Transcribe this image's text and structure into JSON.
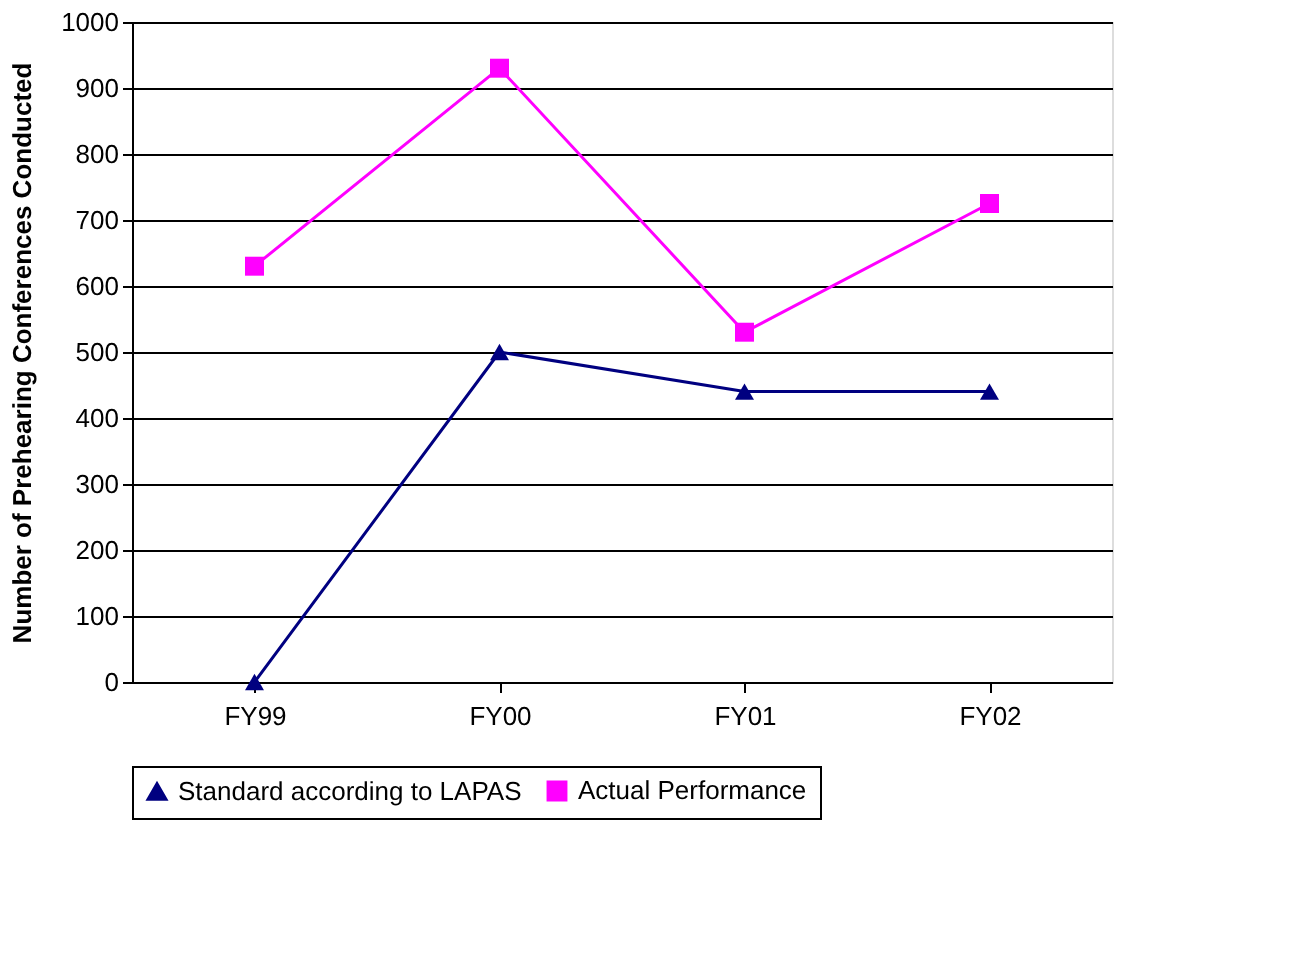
{
  "chart_data": {
    "type": "line",
    "ylabel": "Number of Prehearing Conferences Conducted",
    "categories": [
      "FY99",
      "FY00",
      "FY01",
      "FY02"
    ],
    "series": [
      {
        "name": "Standard according to LAPAS",
        "color": "#000080",
        "marker": "triangle",
        "values": [
          0,
          500,
          440,
          440
        ]
      },
      {
        "name": "Actual Performance",
        "color": "#ff00ff",
        "marker": "square",
        "values": [
          630,
          930,
          530,
          725
        ]
      }
    ],
    "ylim": [
      0,
      1000
    ],
    "yticks": [
      0,
      100,
      200,
      300,
      400,
      500,
      600,
      700,
      800,
      900,
      1000
    ],
    "grid": "y",
    "legend": "bottom",
    "line_style": "solid"
  }
}
